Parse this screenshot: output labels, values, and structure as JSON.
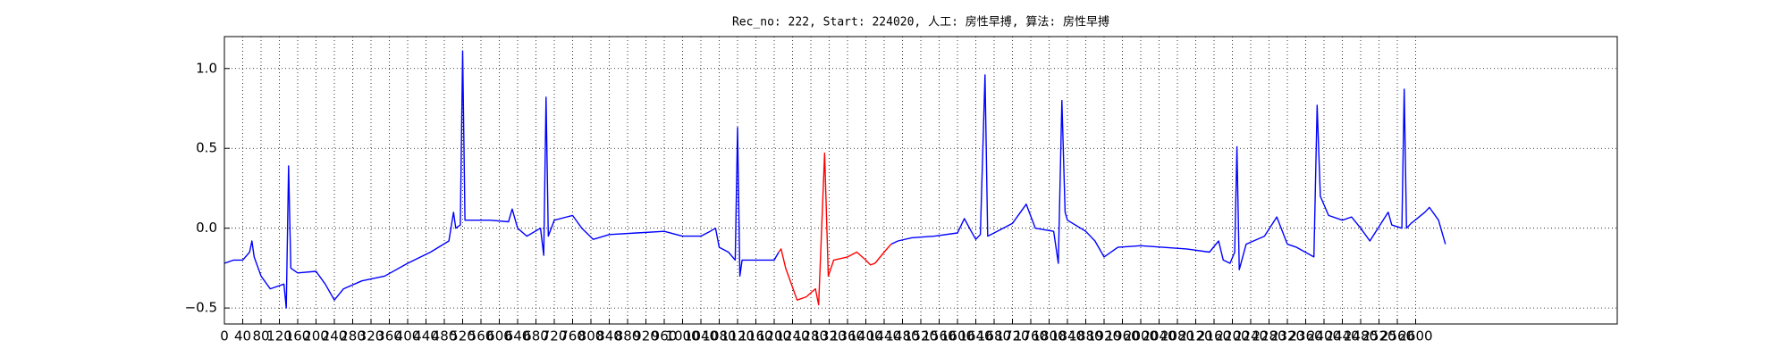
{
  "chart_data": {
    "type": "line",
    "title": "Rec_no: 222, Start: 224020, 人工: 房性早搏, 算法: 房性早搏",
    "xlim": [
      0,
      3040
    ],
    "ylim": [
      -0.6,
      1.2
    ],
    "xticks": [
      0,
      40,
      80,
      120,
      160,
      200,
      240,
      280,
      320,
      360,
      400,
      440,
      480,
      520,
      560,
      600,
      640,
      680,
      720,
      760,
      800,
      840,
      880,
      920,
      960,
      1000,
      1040,
      1080,
      1120,
      1160,
      1200,
      1240,
      1280,
      1320,
      1360,
      1400,
      1440,
      1480,
      1520,
      1560,
      1600,
      1640,
      1680,
      1720,
      1760,
      1800,
      1840,
      1880,
      1920,
      1960,
      2000,
      2040,
      2080,
      2120,
      2160,
      2200,
      2240,
      2280,
      2320,
      2360,
      2400,
      2440,
      2480,
      2520,
      2560,
      2600
    ],
    "yticks": [
      {
        "value": -0.5,
        "label": "−0.5"
      },
      {
        "value": 0,
        "label": "0.0"
      },
      {
        "value": 0.5,
        "label": "0.5"
      },
      {
        "value": 1.0,
        "label": "1.0"
      }
    ],
    "grid": true,
    "series": [
      {
        "color": "#0000ff",
        "x": [
          0,
          20,
          40,
          55,
          60,
          65,
          80,
          100,
          130,
          135,
          140,
          145,
          160,
          200,
          220,
          240,
          260,
          300,
          350,
          400,
          450,
          490,
          500,
          505,
          515,
          520,
          525,
          540,
          580,
          620,
          628,
          640,
          660,
          690,
          697,
          702,
          707,
          720,
          760,
          780,
          805,
          840,
          900,
          960,
          1000,
          1040,
          1060,
          1072,
          1080,
          1100,
          1115,
          1120,
          1125,
          1130,
          1160,
          1200,
          1210,
          1330,
          1455,
          1470,
          1500,
          1550,
          1600,
          1615,
          1630,
          1640,
          1650,
          1660,
          1666,
          1680,
          1720,
          1750,
          1770,
          1810,
          1820,
          1828,
          1835,
          1840,
          1880,
          1900,
          1920,
          1950,
          2000,
          2100,
          2150,
          2170,
          2180,
          2195,
          2205,
          2210,
          2215,
          2230,
          2270,
          2297,
          2320,
          2340,
          2378,
          2385,
          2392,
          2410,
          2440,
          2460,
          2480,
          2500,
          2540,
          2548,
          2570,
          2575,
          2580,
          2590,
          2620,
          2630,
          2650,
          2665
        ],
        "values": [
          -0.22,
          -0.2,
          -0.2,
          -0.15,
          -0.08,
          -0.18,
          -0.3,
          -0.38,
          -0.35,
          -0.5,
          0.39,
          -0.25,
          -0.28,
          -0.27,
          -0.35,
          -0.45,
          -0.38,
          -0.33,
          -0.3,
          -0.22,
          -0.15,
          -0.08,
          0.1,
          0.0,
          0.02,
          1.11,
          0.05,
          0.05,
          0.05,
          0.04,
          0.12,
          0.0,
          -0.05,
          0.0,
          -0.17,
          0.82,
          -0.05,
          0.05,
          0.08,
          0.0,
          -0.07,
          -0.04,
          -0.03,
          -0.02,
          -0.05,
          -0.05,
          -0.02,
          0.0,
          -0.12,
          -0.15,
          -0.2,
          0.63,
          -0.3,
          -0.2,
          -0.2,
          -0.2,
          -0.15,
          null,
          -0.1,
          -0.08,
          -0.06,
          -0.05,
          -0.03,
          0.06,
          -0.02,
          -0.07,
          -0.04,
          0.96,
          -0.05,
          -0.03,
          0.03,
          0.15,
          0.0,
          -0.02,
          -0.22,
          0.8,
          0.1,
          0.05,
          -0.02,
          -0.08,
          -0.18,
          -0.12,
          -0.11,
          -0.13,
          -0.15,
          -0.08,
          -0.2,
          -0.22,
          -0.15,
          0.51,
          -0.26,
          -0.1,
          -0.05,
          0.07,
          -0.1,
          -0.12,
          -0.18,
          0.77,
          0.2,
          0.08,
          0.05,
          0.07,
          0.0,
          -0.08,
          0.1,
          0.02,
          0.0,
          0.87,
          0.0,
          0.03,
          0.1,
          0.13,
          0.05,
          -0.1
        ]
      },
      {
        "color": "#ff0000",
        "x": [
          1210,
          1215,
          1225,
          1250,
          1270,
          1290,
          1297,
          1310,
          1318,
          1330,
          1360,
          1380,
          1400,
          1410,
          1420,
          1440,
          1455
        ],
        "values": [
          -0.15,
          -0.13,
          -0.25,
          -0.45,
          -0.43,
          -0.38,
          -0.48,
          0.47,
          -0.3,
          -0.2,
          -0.18,
          -0.15,
          -0.2,
          -0.23,
          -0.22,
          -0.15,
          -0.1
        ]
      }
    ]
  }
}
